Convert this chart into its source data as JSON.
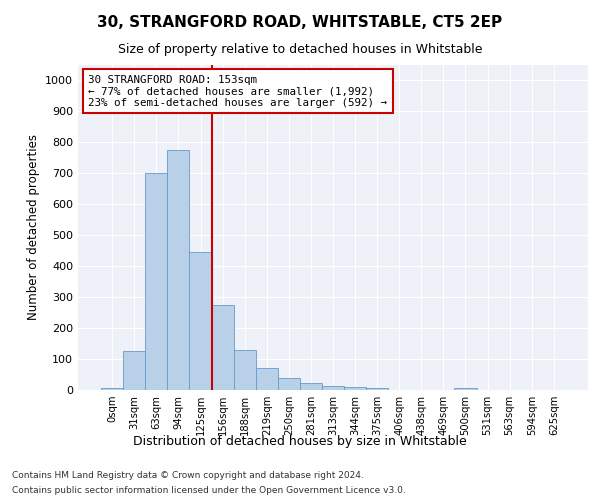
{
  "title": "30, STRANGFORD ROAD, WHITSTABLE, CT5 2EP",
  "subtitle": "Size of property relative to detached houses in Whitstable",
  "xlabel": "Distribution of detached houses by size in Whitstable",
  "ylabel": "Number of detached properties",
  "categories": [
    "0sqm",
    "31sqm",
    "63sqm",
    "94sqm",
    "125sqm",
    "156sqm",
    "188sqm",
    "219sqm",
    "250sqm",
    "281sqm",
    "313sqm",
    "344sqm",
    "375sqm",
    "406sqm",
    "438sqm",
    "469sqm",
    "500sqm",
    "531sqm",
    "563sqm",
    "594sqm",
    "625sqm"
  ],
  "values": [
    5,
    125,
    700,
    775,
    445,
    275,
    130,
    70,
    38,
    22,
    12,
    10,
    8,
    0,
    0,
    0,
    7,
    0,
    0,
    0,
    0
  ],
  "bar_color": "#b8d0e8",
  "bar_edge_color": "#6699cc",
  "bar_width": 1.0,
  "ylim": [
    0,
    1050
  ],
  "yticks": [
    0,
    100,
    200,
    300,
    400,
    500,
    600,
    700,
    800,
    900,
    1000
  ],
  "vline_index": 4.5,
  "vline_color": "#cc0000",
  "annotation_text": "30 STRANGFORD ROAD: 153sqm\n← 77% of detached houses are smaller (1,992)\n23% of semi-detached houses are larger (592) →",
  "annotation_box_color": "#cc0000",
  "background_color": "#eef2f8",
  "grid_color": "#ffffff",
  "footer_line1": "Contains HM Land Registry data © Crown copyright and database right 2024.",
  "footer_line2": "Contains public sector information licensed under the Open Government Licence v3.0."
}
